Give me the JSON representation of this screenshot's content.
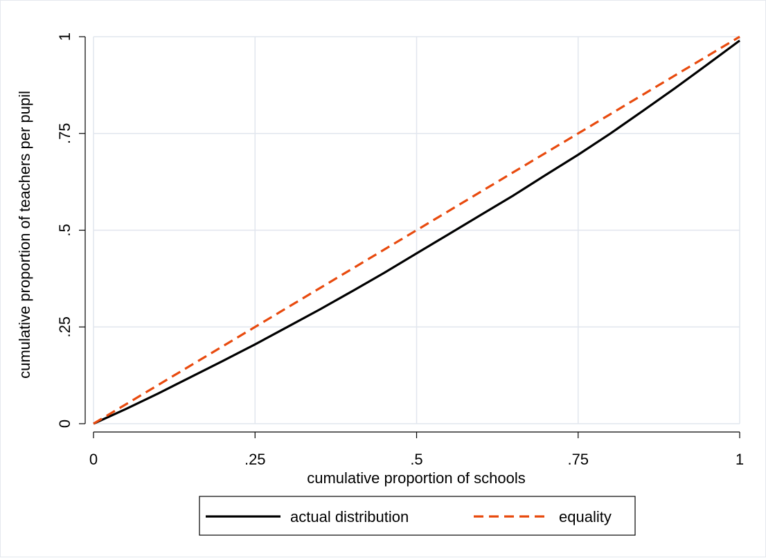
{
  "chart_data": {
    "type": "line",
    "title": "",
    "xlabel": "cumulative proportion of schools",
    "ylabel": "cumulative proportion of teachers per pupil",
    "xlim": [
      0,
      1
    ],
    "ylim": [
      0,
      1
    ],
    "grid": true,
    "legend_position": "bottom",
    "x_ticks": [
      {
        "value": 0,
        "label": "0"
      },
      {
        "value": 0.25,
        "label": ".25"
      },
      {
        "value": 0.5,
        "label": ".5"
      },
      {
        "value": 0.75,
        "label": ".75"
      },
      {
        "value": 1,
        "label": "1"
      }
    ],
    "y_ticks": [
      {
        "value": 0,
        "label": "0"
      },
      {
        "value": 0.25,
        "label": ".25"
      },
      {
        "value": 0.5,
        "label": ".5"
      },
      {
        "value": 0.75,
        "label": ".75"
      },
      {
        "value": 1,
        "label": "1"
      }
    ],
    "series": [
      {
        "name": "actual distribution",
        "style": "solid",
        "color": "#000000",
        "x": [
          0,
          0.05,
          0.1,
          0.15,
          0.2,
          0.25,
          0.3,
          0.35,
          0.4,
          0.45,
          0.5,
          0.55,
          0.6,
          0.65,
          0.7,
          0.75,
          0.8,
          0.85,
          0.9,
          0.95,
          1
        ],
        "y": [
          0,
          0.038,
          0.078,
          0.12,
          0.162,
          0.205,
          0.25,
          0.295,
          0.342,
          0.39,
          0.44,
          0.49,
          0.54,
          0.59,
          0.643,
          0.695,
          0.75,
          0.808,
          0.867,
          0.928,
          0.99
        ]
      },
      {
        "name": "equality",
        "style": "dashed",
        "color": "#e84a0e",
        "x": [
          0,
          1
        ],
        "y": [
          0,
          1
        ]
      }
    ]
  }
}
